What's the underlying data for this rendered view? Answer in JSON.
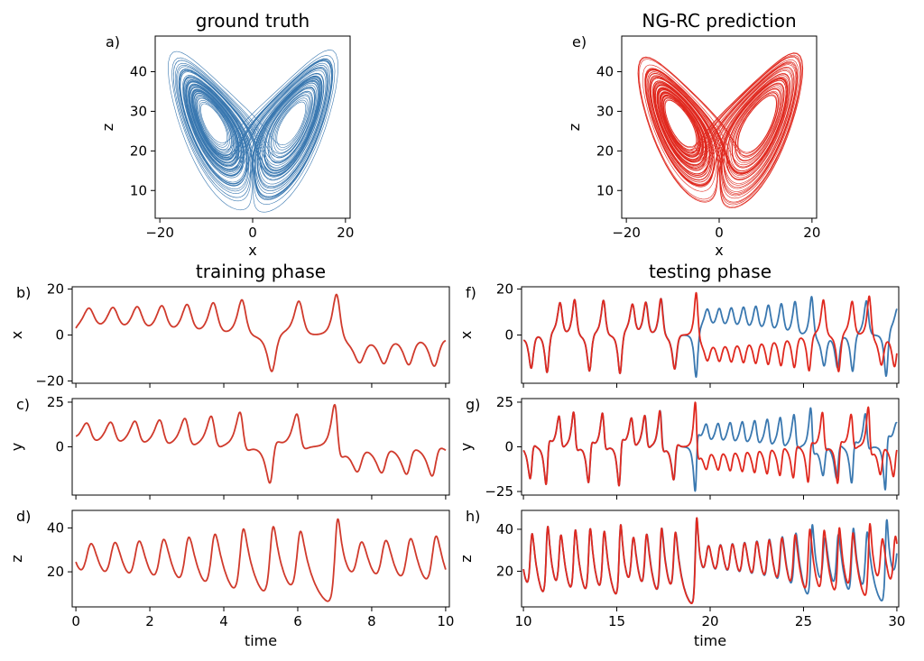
{
  "colors": {
    "ground_truth": "#3a78b0",
    "prediction": "#e0291f",
    "training": "#d03a2c"
  },
  "chart_data": [
    {
      "id": "a",
      "letter": "a)",
      "type": "line",
      "title": "ground truth",
      "xlabel": "x",
      "ylabel": "z",
      "xlim": [
        -21,
        21
      ],
      "ylim": [
        3,
        49
      ],
      "xticks": [
        -20,
        0,
        20
      ],
      "yticks": [
        10,
        20,
        30,
        40
      ],
      "series": [
        {
          "role": "ground_truth",
          "kind": "lorenz-attractor",
          "x": "lorenz x",
          "y": "lorenz z"
        }
      ]
    },
    {
      "id": "e",
      "letter": "e)",
      "type": "line",
      "title": "NG-RC prediction",
      "xlabel": "x",
      "ylabel": "z",
      "xlim": [
        -21,
        21
      ],
      "ylim": [
        3,
        49
      ],
      "xticks": [
        -20,
        0,
        20
      ],
      "yticks": [
        10,
        20,
        30,
        40
      ],
      "series": [
        {
          "role": "prediction",
          "kind": "lorenz-attractor",
          "x": "lorenz x",
          "y": "lorenz z"
        }
      ]
    },
    {
      "id": "b",
      "letter": "b)",
      "type": "line",
      "title": "training phase",
      "xlabel": "",
      "ylabel": "x",
      "xlim": [
        -0.1,
        10.1
      ],
      "ylim": [
        -21,
        21
      ],
      "xticks": [
        0,
        2,
        4,
        6,
        8,
        10
      ],
      "yticks": [
        -20,
        0,
        20
      ],
      "show_xticklabels": false,
      "series": [
        {
          "role": "training",
          "variable": "x",
          "t": [
            0,
            10
          ]
        }
      ]
    },
    {
      "id": "c",
      "letter": "c)",
      "type": "line",
      "title": "",
      "xlabel": "",
      "ylabel": "y",
      "xlim": [
        -0.1,
        10.1
      ],
      "ylim": [
        -27,
        27
      ],
      "xticks": [
        0,
        2,
        4,
        6,
        8,
        10
      ],
      "yticks": [
        0,
        25
      ],
      "show_xticklabels": false,
      "series": [
        {
          "role": "training",
          "variable": "y",
          "t": [
            0,
            10
          ]
        }
      ]
    },
    {
      "id": "d",
      "letter": "d)",
      "type": "line",
      "title": "",
      "xlabel": "time",
      "ylabel": "z",
      "xlim": [
        -0.1,
        10.1
      ],
      "ylim": [
        4,
        48
      ],
      "xticks": [
        0,
        2,
        4,
        6,
        8,
        10
      ],
      "yticks": [
        20,
        40
      ],
      "show_xticklabels": true,
      "series": [
        {
          "role": "training",
          "variable": "z",
          "t": [
            0,
            10
          ]
        }
      ]
    },
    {
      "id": "f",
      "letter": "f)",
      "type": "line",
      "title": "testing phase",
      "xlabel": "",
      "ylabel": "x",
      "xlim": [
        9.9,
        30.1
      ],
      "ylim": [
        -21,
        21
      ],
      "xticks": [
        10,
        15,
        20,
        25,
        30
      ],
      "yticks": [
        0,
        20
      ],
      "show_xticklabels": false,
      "series": [
        {
          "role": "ground_truth",
          "variable": "x",
          "t": [
            10,
            30
          ]
        },
        {
          "role": "prediction",
          "variable": "x",
          "t": [
            10,
            30
          ]
        }
      ]
    },
    {
      "id": "g",
      "letter": "g)",
      "type": "line",
      "title": "",
      "xlabel": "",
      "ylabel": "y",
      "xlim": [
        9.9,
        30.1
      ],
      "ylim": [
        -27,
        27
      ],
      "xticks": [
        10,
        15,
        20,
        25,
        30
      ],
      "yticks": [
        -25,
        0,
        25
      ],
      "show_xticklabels": false,
      "series": [
        {
          "role": "ground_truth",
          "variable": "y",
          "t": [
            10,
            30
          ]
        },
        {
          "role": "prediction",
          "variable": "y",
          "t": [
            10,
            30
          ]
        }
      ]
    },
    {
      "id": "h",
      "letter": "h)",
      "type": "line",
      "title": "",
      "xlabel": "time",
      "ylabel": "z",
      "xlim": [
        9.9,
        30.1
      ],
      "ylim": [
        3,
        49
      ],
      "xticks": [
        10,
        15,
        20,
        25,
        30
      ],
      "yticks": [
        20,
        40
      ],
      "show_xticklabels": true,
      "series": [
        {
          "role": "ground_truth",
          "variable": "z",
          "t": [
            10,
            30
          ]
        },
        {
          "role": "prediction",
          "variable": "z",
          "t": [
            10,
            30
          ]
        }
      ]
    }
  ]
}
